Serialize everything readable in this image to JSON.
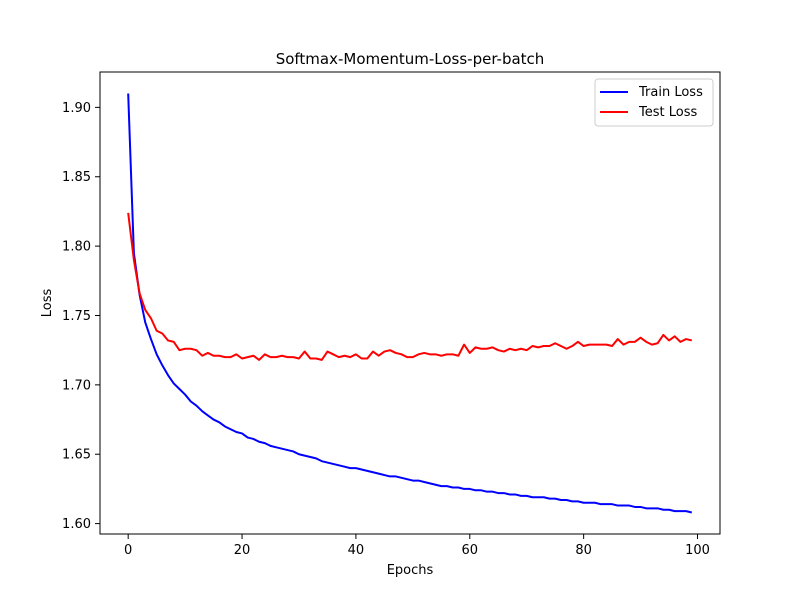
{
  "chart_data": {
    "type": "line",
    "title": "Softmax-Momentum-Loss-per-batch",
    "xlabel": "Epochs",
    "ylabel": "Loss",
    "xlim": [
      -4.95,
      103.95
    ],
    "ylim": [
      1.5925,
      1.9255
    ],
    "xticks": [
      0,
      20,
      40,
      60,
      80,
      100
    ],
    "yticks": [
      1.6,
      1.65,
      1.7,
      1.75,
      1.8,
      1.85,
      1.9
    ],
    "grid": false,
    "legend_position": "top-right",
    "series": [
      {
        "name": "Train Loss",
        "color": "#0000ff",
        "x": [
          0,
          1,
          2,
          3,
          4,
          5,
          6,
          7,
          8,
          9,
          10,
          11,
          12,
          13,
          14,
          15,
          16,
          17,
          18,
          19,
          20,
          21,
          22,
          23,
          24,
          25,
          26,
          27,
          28,
          29,
          30,
          31,
          32,
          33,
          34,
          35,
          36,
          37,
          38,
          39,
          40,
          41,
          42,
          43,
          44,
          45,
          46,
          47,
          48,
          49,
          50,
          51,
          52,
          53,
          54,
          55,
          56,
          57,
          58,
          59,
          60,
          61,
          62,
          63,
          64,
          65,
          66,
          67,
          68,
          69,
          70,
          71,
          72,
          73,
          74,
          75,
          76,
          77,
          78,
          79,
          80,
          81,
          82,
          83,
          84,
          85,
          86,
          87,
          88,
          89,
          90,
          91,
          92,
          93,
          94,
          95,
          96,
          97,
          98,
          99
        ],
        "values": [
          1.91,
          1.795,
          1.765,
          1.745,
          1.733,
          1.722,
          1.714,
          1.707,
          1.701,
          1.697,
          1.693,
          1.688,
          1.685,
          1.681,
          1.678,
          1.675,
          1.673,
          1.67,
          1.668,
          1.666,
          1.665,
          1.662,
          1.661,
          1.659,
          1.658,
          1.656,
          1.655,
          1.654,
          1.653,
          1.652,
          1.65,
          1.649,
          1.648,
          1.647,
          1.645,
          1.644,
          1.643,
          1.642,
          1.641,
          1.64,
          1.64,
          1.639,
          1.638,
          1.637,
          1.636,
          1.635,
          1.634,
          1.634,
          1.633,
          1.632,
          1.631,
          1.631,
          1.63,
          1.629,
          1.628,
          1.627,
          1.627,
          1.626,
          1.626,
          1.625,
          1.625,
          1.624,
          1.624,
          1.623,
          1.623,
          1.622,
          1.622,
          1.621,
          1.621,
          1.62,
          1.62,
          1.619,
          1.619,
          1.619,
          1.618,
          1.618,
          1.617,
          1.617,
          1.616,
          1.616,
          1.615,
          1.615,
          1.615,
          1.614,
          1.614,
          1.614,
          1.613,
          1.613,
          1.613,
          1.612,
          1.612,
          1.611,
          1.611,
          1.611,
          1.61,
          1.61,
          1.609,
          1.609,
          1.609,
          1.608
        ]
      },
      {
        "name": "Test Loss",
        "color": "#ff0000",
        "x": [
          0,
          1,
          2,
          3,
          4,
          5,
          6,
          7,
          8,
          9,
          10,
          11,
          12,
          13,
          14,
          15,
          16,
          17,
          18,
          19,
          20,
          21,
          22,
          23,
          24,
          25,
          26,
          27,
          28,
          29,
          30,
          31,
          32,
          33,
          34,
          35,
          36,
          37,
          38,
          39,
          40,
          41,
          42,
          43,
          44,
          45,
          46,
          47,
          48,
          49,
          50,
          51,
          52,
          53,
          54,
          55,
          56,
          57,
          58,
          59,
          60,
          61,
          62,
          63,
          64,
          65,
          66,
          67,
          68,
          69,
          70,
          71,
          72,
          73,
          74,
          75,
          76,
          77,
          78,
          79,
          80,
          81,
          82,
          83,
          84,
          85,
          86,
          87,
          88,
          89,
          90,
          91,
          92,
          93,
          94,
          95,
          96,
          97,
          98,
          99
        ],
        "values": [
          1.824,
          1.79,
          1.766,
          1.754,
          1.748,
          1.739,
          1.737,
          1.732,
          1.731,
          1.725,
          1.726,
          1.726,
          1.725,
          1.721,
          1.723,
          1.721,
          1.721,
          1.72,
          1.72,
          1.722,
          1.719,
          1.72,
          1.721,
          1.718,
          1.722,
          1.72,
          1.72,
          1.721,
          1.72,
          1.72,
          1.719,
          1.724,
          1.719,
          1.719,
          1.718,
          1.724,
          1.722,
          1.72,
          1.721,
          1.72,
          1.722,
          1.719,
          1.719,
          1.724,
          1.721,
          1.724,
          1.725,
          1.723,
          1.722,
          1.72,
          1.72,
          1.722,
          1.723,
          1.722,
          1.722,
          1.721,
          1.722,
          1.722,
          1.721,
          1.729,
          1.723,
          1.727,
          1.726,
          1.726,
          1.727,
          1.725,
          1.724,
          1.726,
          1.725,
          1.726,
          1.725,
          1.728,
          1.727,
          1.728,
          1.728,
          1.73,
          1.728,
          1.726,
          1.728,
          1.731,
          1.728,
          1.729,
          1.729,
          1.729,
          1.729,
          1.728,
          1.733,
          1.729,
          1.731,
          1.731,
          1.734,
          1.731,
          1.729,
          1.73,
          1.736,
          1.732,
          1.735,
          1.731,
          1.733,
          1.732
        ]
      }
    ]
  }
}
